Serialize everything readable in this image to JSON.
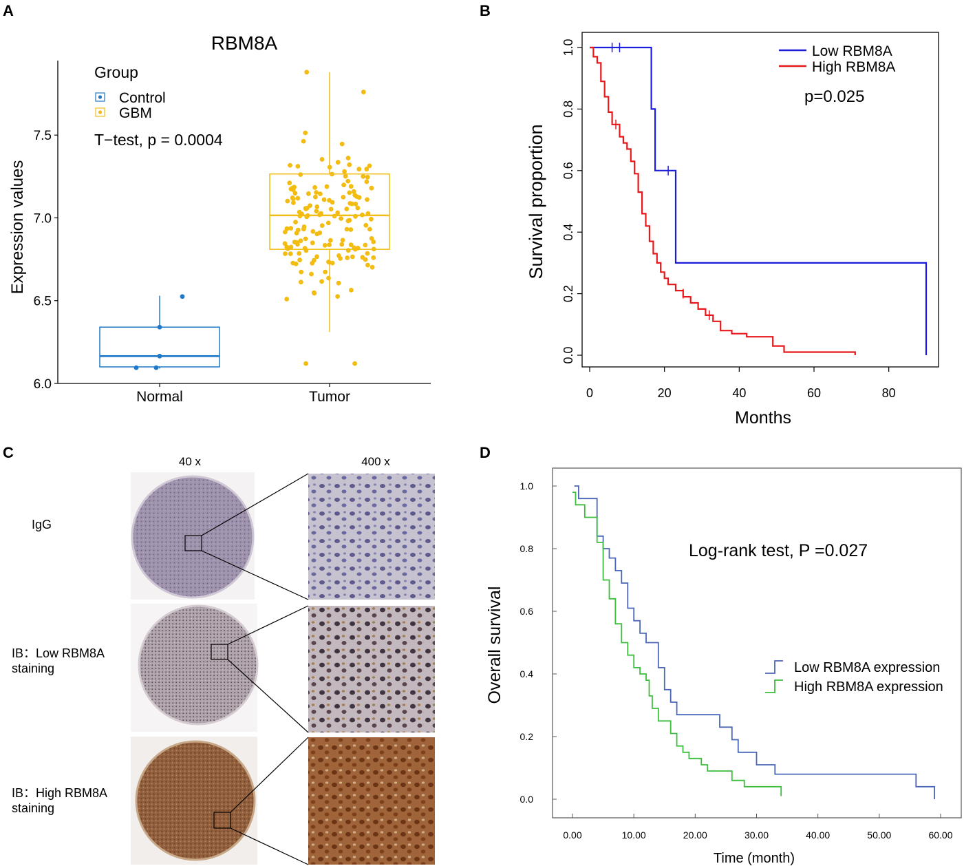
{
  "panels": {
    "A": "A",
    "B": "B",
    "C": "C",
    "D": "D"
  },
  "colors": {
    "control": "#1f78c8",
    "gbm": "#f2bc12",
    "low_b": "#1c1cdc",
    "high_b": "#e8171b",
    "low_d": "#4a66b8",
    "high_d": "#3cbe3c"
  },
  "chart_data": [
    {
      "panel": "A",
      "type": "scatter",
      "title": "RBM8A",
      "xlabel": "",
      "ylabel": "Expression values",
      "categories": [
        "Normal",
        "Tumor"
      ],
      "ylim": [
        6.0,
        7.95
      ],
      "yticks": [
        "6.0",
        "6.5",
        "7.0",
        "7.5"
      ],
      "legend_title": "Group",
      "legend": [
        "Control",
        "GBM"
      ],
      "annotation": "T−test, p = 0.0004",
      "boxes": [
        {
          "group": "Normal",
          "whisker_low": 6.09,
          "q1": 6.1,
          "median": 6.165,
          "q3": 6.34,
          "whisker_high": 6.53
        },
        {
          "group": "Tumor",
          "whisker_low": 6.31,
          "q1": 6.81,
          "median": 7.015,
          "q3": 7.265,
          "whisker_high": 7.88
        }
      ],
      "points_normal": [
        6.525,
        6.34,
        6.165,
        6.095,
        6.095
      ],
      "points_tumor_count": 160
    },
    {
      "panel": "B",
      "type": "line",
      "title": "",
      "xlabel": "Months",
      "ylabel": "Survival proportion",
      "xlim": [
        0,
        95
      ],
      "ylim": [
        0,
        1
      ],
      "xticks": [
        "0",
        "20",
        "40",
        "60",
        "80"
      ],
      "yticks": [
        "0.0",
        "0.2",
        "0.4",
        "0.6",
        "0.8",
        "1.0"
      ],
      "annotation": "p=0.025",
      "series": [
        {
          "name": "Low RBM8A",
          "steps": [
            [
              0,
              1.0
            ],
            [
              16.5,
              1.0
            ],
            [
              16.5,
              0.8
            ],
            [
              17.5,
              0.8
            ],
            [
              17.5,
              0.6
            ],
            [
              23,
              0.6
            ],
            [
              23,
              0.3
            ],
            [
              90,
              0.3
            ],
            [
              90,
              0.0
            ]
          ]
        },
        {
          "name": "High RBM8A",
          "steps": [
            [
              0,
              1.0
            ],
            [
              1,
              1.0
            ],
            [
              1,
              0.97
            ],
            [
              2,
              0.97
            ],
            [
              2,
              0.95
            ],
            [
              3,
              0.95
            ],
            [
              3,
              0.89
            ],
            [
              4,
              0.89
            ],
            [
              4,
              0.84
            ],
            [
              5,
              0.84
            ],
            [
              5,
              0.79
            ],
            [
              6,
              0.79
            ],
            [
              6,
              0.75
            ],
            [
              8,
              0.75
            ],
            [
              8,
              0.71
            ],
            [
              9,
              0.71
            ],
            [
              9,
              0.69
            ],
            [
              10,
              0.69
            ],
            [
              10,
              0.67
            ],
            [
              11,
              0.67
            ],
            [
              11,
              0.63
            ],
            [
              12,
              0.63
            ],
            [
              12,
              0.59
            ],
            [
              13,
              0.59
            ],
            [
              13,
              0.53
            ],
            [
              14,
              0.53
            ],
            [
              14,
              0.46
            ],
            [
              15,
              0.46
            ],
            [
              15,
              0.42
            ],
            [
              16,
              0.42
            ],
            [
              16,
              0.37
            ],
            [
              17,
              0.37
            ],
            [
              17,
              0.33
            ],
            [
              18,
              0.33
            ],
            [
              18,
              0.3
            ],
            [
              19,
              0.3
            ],
            [
              19,
              0.27
            ],
            [
              20,
              0.27
            ],
            [
              20,
              0.25
            ],
            [
              21,
              0.25
            ],
            [
              21,
              0.23
            ],
            [
              23,
              0.23
            ],
            [
              23,
              0.21
            ],
            [
              25,
              0.21
            ],
            [
              25,
              0.19
            ],
            [
              27,
              0.19
            ],
            [
              27,
              0.17
            ],
            [
              29,
              0.17
            ],
            [
              29,
              0.15
            ],
            [
              31,
              0.15
            ],
            [
              31,
              0.13
            ],
            [
              33,
              0.13
            ],
            [
              33,
              0.11
            ],
            [
              35,
              0.11
            ],
            [
              35,
              0.08
            ],
            [
              38,
              0.08
            ],
            [
              38,
              0.07
            ],
            [
              42,
              0.07
            ],
            [
              42,
              0.06
            ],
            [
              49,
              0.06
            ],
            [
              49,
              0.03
            ],
            [
              52,
              0.03
            ],
            [
              52,
              0.01
            ],
            [
              71,
              0.01
            ],
            [
              71,
              0.0
            ]
          ]
        }
      ],
      "censor_low": [
        [
          6,
          1.0
        ],
        [
          8,
          1.0
        ],
        [
          21,
          0.6
        ]
      ],
      "censor_high": [
        [
          7,
          0.75
        ],
        [
          25,
          0.2
        ],
        [
          32,
          0.13
        ]
      ]
    },
    {
      "panel": "D",
      "type": "line",
      "title": "",
      "xlabel": "Time (month)",
      "ylabel": "Overall survival",
      "xlim": [
        -2,
        62
      ],
      "ylim": [
        -0.06,
        1.1
      ],
      "xticks": [
        "0.00",
        "10.00",
        "20.00",
        "30.00",
        "40.00",
        "50.00",
        "60.00"
      ],
      "yticks": [
        "0.0",
        "0.2",
        "0.4",
        "0.6",
        "0.8",
        "1.0"
      ],
      "annotation": "Log-rank test, P =0.027",
      "series": [
        {
          "name": "Low RBM8A expression",
          "steps": [
            [
              0.3,
              1.0
            ],
            [
              1,
              1.0
            ],
            [
              1,
              0.96
            ],
            [
              4,
              0.96
            ],
            [
              4,
              0.84
            ],
            [
              5,
              0.84
            ],
            [
              5,
              0.8
            ],
            [
              6,
              0.8
            ],
            [
              6,
              0.77
            ],
            [
              7,
              0.77
            ],
            [
              7,
              0.73
            ],
            [
              8,
              0.73
            ],
            [
              8,
              0.69
            ],
            [
              9,
              0.69
            ],
            [
              9,
              0.61
            ],
            [
              10,
              0.61
            ],
            [
              10,
              0.57
            ],
            [
              11,
              0.57
            ],
            [
              11,
              0.53
            ],
            [
              12,
              0.53
            ],
            [
              12,
              0.5
            ],
            [
              14,
              0.5
            ],
            [
              14,
              0.42
            ],
            [
              15,
              0.42
            ],
            [
              15,
              0.35
            ],
            [
              16,
              0.35
            ],
            [
              16,
              0.31
            ],
            [
              17,
              0.31
            ],
            [
              17,
              0.27
            ],
            [
              24,
              0.27
            ],
            [
              24,
              0.23
            ],
            [
              26,
              0.23
            ],
            [
              26,
              0.19
            ],
            [
              27,
              0.19
            ],
            [
              27,
              0.15
            ],
            [
              30,
              0.15
            ],
            [
              30,
              0.11
            ],
            [
              33,
              0.11
            ],
            [
              33,
              0.08
            ],
            [
              56,
              0.08
            ],
            [
              56,
              0.04
            ],
            [
              59,
              0.04
            ],
            [
              59,
              0.0
            ]
          ]
        },
        {
          "name": "High RBM8A expression",
          "steps": [
            [
              0,
              0.98
            ],
            [
              0.5,
              0.98
            ],
            [
              0.5,
              0.94
            ],
            [
              2,
              0.94
            ],
            [
              2,
              0.9
            ],
            [
              4,
              0.9
            ],
            [
              4,
              0.82
            ],
            [
              5,
              0.82
            ],
            [
              5,
              0.7
            ],
            [
              6,
              0.7
            ],
            [
              6,
              0.64
            ],
            [
              7,
              0.64
            ],
            [
              7,
              0.56
            ],
            [
              8,
              0.56
            ],
            [
              8,
              0.5
            ],
            [
              9,
              0.5
            ],
            [
              9,
              0.46
            ],
            [
              10,
              0.46
            ],
            [
              10,
              0.42
            ],
            [
              11,
              0.42
            ],
            [
              11,
              0.4
            ],
            [
              12,
              0.4
            ],
            [
              12,
              0.38
            ],
            [
              12.5,
              0.38
            ],
            [
              12.5,
              0.33
            ],
            [
              13,
              0.33
            ],
            [
              13,
              0.29
            ],
            [
              14,
              0.29
            ],
            [
              14,
              0.25
            ],
            [
              16,
              0.25
            ],
            [
              16,
              0.21
            ],
            [
              17,
              0.21
            ],
            [
              17,
              0.17
            ],
            [
              18,
              0.17
            ],
            [
              18,
              0.15
            ],
            [
              19,
              0.15
            ],
            [
              19,
              0.13
            ],
            [
              21,
              0.13
            ],
            [
              21,
              0.11
            ],
            [
              22,
              0.11
            ],
            [
              22,
              0.09
            ],
            [
              26,
              0.09
            ],
            [
              26,
              0.06
            ],
            [
              28,
              0.06
            ],
            [
              28,
              0.04
            ],
            [
              34,
              0.04
            ],
            [
              34,
              0.01
            ]
          ]
        }
      ]
    }
  ],
  "panel_c": {
    "header_40x": "40 x",
    "header_400x": "400 x",
    "rows": [
      {
        "label_line1": "IgG",
        "label_line2": ""
      },
      {
        "label_line1": "IB：Low RBM8A",
        "label_line2": "staining"
      },
      {
        "label_line1": "IB：High  RBM8A",
        "label_line2": "staining"
      }
    ]
  }
}
